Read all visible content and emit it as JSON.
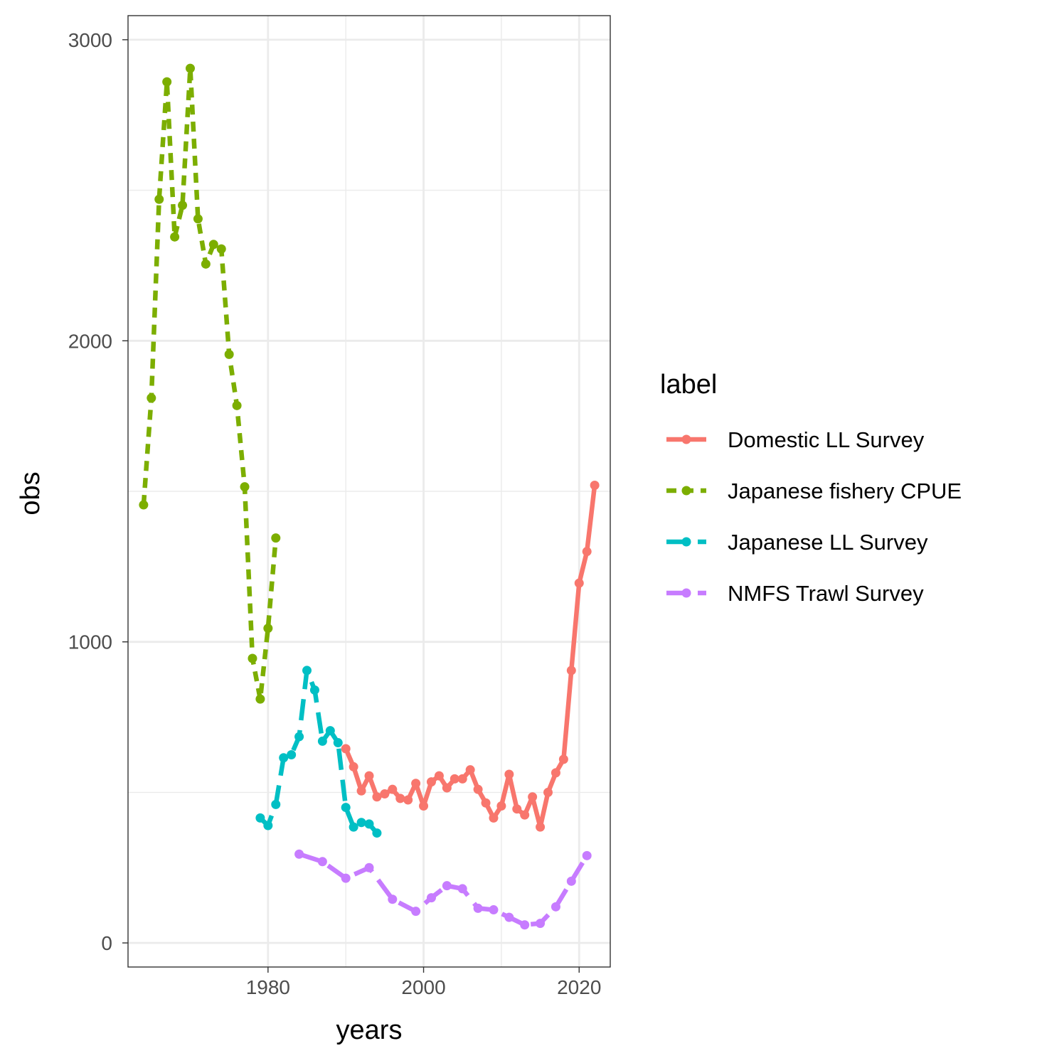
{
  "chart_data": {
    "type": "line",
    "xlabel": "years",
    "ylabel": "obs",
    "xlim": [
      1962,
      2024
    ],
    "ylim": [
      -80,
      3080
    ],
    "x_ticks": [
      1980,
      2000,
      2020
    ],
    "y_ticks": [
      0,
      1000,
      2000,
      3000
    ],
    "x_tick_labels": [
      "1980",
      "2000",
      "2020"
    ],
    "y_tick_labels": [
      "0",
      "1000",
      "2000",
      "3000"
    ],
    "grid": true,
    "legend": {
      "title": "label",
      "position": "right"
    },
    "series": [
      {
        "name": "Domestic LL Survey",
        "color": "#F8766D",
        "linestyle": "solid",
        "x": [
          1990,
          1991,
          1992,
          1993,
          1994,
          1995,
          1996,
          1997,
          1998,
          1999,
          2000,
          2001,
          2002,
          2003,
          2004,
          2005,
          2006,
          2007,
          2008,
          2009,
          2010,
          2011,
          2012,
          2013,
          2014,
          2015,
          2016,
          2017,
          2018,
          2019,
          2020,
          2021,
          2022
        ],
        "y": [
          645,
          585,
          505,
          555,
          485,
          495,
          510,
          480,
          475,
          530,
          455,
          535,
          555,
          515,
          545,
          545,
          575,
          510,
          465,
          415,
          455,
          560,
          445,
          425,
          485,
          385,
          500,
          565,
          610,
          905,
          1195,
          1300,
          1520
        ]
      },
      {
        "name": "Japanese fishery CPUE",
        "color": "#7CAE00",
        "linestyle": "dashed",
        "x": [
          1964,
          1965,
          1966,
          1967,
          1968,
          1969,
          1970,
          1971,
          1972,
          1973,
          1974,
          1975,
          1976,
          1977,
          1978,
          1979,
          1980,
          1981
        ],
        "y": [
          1455,
          1810,
          2470,
          2860,
          2345,
          2450,
          2905,
          2405,
          2255,
          2320,
          2305,
          1955,
          1785,
          1515,
          945,
          810,
          1045,
          1345
        ]
      },
      {
        "name": "Japanese LL Survey",
        "color": "#00BFC4",
        "linestyle": "longdash",
        "x": [
          1979,
          1980,
          1981,
          1982,
          1983,
          1984,
          1985,
          1986,
          1987,
          1988,
          1989,
          1990,
          1991,
          1992,
          1993,
          1994
        ],
        "y": [
          415,
          390,
          460,
          615,
          625,
          685,
          905,
          840,
          670,
          705,
          665,
          450,
          385,
          400,
          395,
          365
        ]
      },
      {
        "name": "NMFS Trawl Survey",
        "color": "#C77CFF",
        "linestyle": "longdash",
        "x": [
          1984,
          1987,
          1990,
          1993,
          1996,
          1999,
          2001,
          2003,
          2005,
          2007,
          2009,
          2011,
          2013,
          2015,
          2017,
          2019,
          2021
        ],
        "y": [
          295,
          270,
          215,
          250,
          145,
          105,
          150,
          190,
          180,
          115,
          110,
          85,
          60,
          65,
          120,
          205,
          290
        ]
      }
    ]
  }
}
